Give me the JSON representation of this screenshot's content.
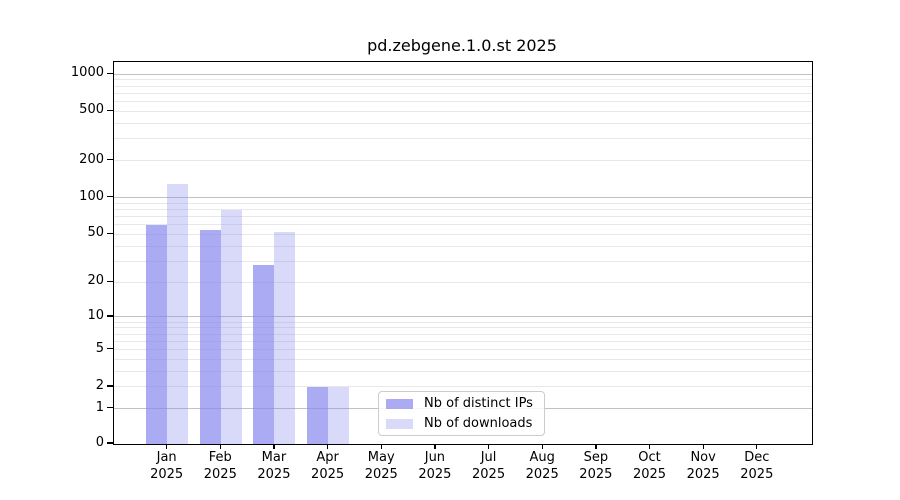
{
  "chart_data": {
    "type": "bar",
    "title": "pd.zebgene.1.0.st 2025",
    "x_axis": {
      "months": [
        "Jan",
        "Feb",
        "Mar",
        "Apr",
        "May",
        "Jun",
        "Jul",
        "Aug",
        "Sep",
        "Oct",
        "Nov",
        "Dec"
      ],
      "year": "2025"
    },
    "y_axis": {
      "scale": "log10(1+value)",
      "tick_values": [
        1000,
        500,
        200,
        100,
        50,
        20,
        10,
        5,
        2,
        1,
        0
      ],
      "major_gridlines": [
        1,
        10,
        100,
        1000
      ],
      "minor_gridlines": [
        2,
        3,
        4,
        5,
        6,
        7,
        8,
        9,
        20,
        30,
        40,
        50,
        60,
        70,
        80,
        90,
        200,
        300,
        400,
        500,
        600,
        700,
        800,
        900
      ],
      "top_value": 1250
    },
    "series": [
      {
        "name": "Nb of distinct IPs",
        "color": "#8888ee",
        "alpha": 0.7,
        "values": [
          60,
          54,
          28,
          2,
          0,
          0,
          0,
          0,
          0,
          0,
          0,
          0
        ]
      },
      {
        "name": "Nb of downloads",
        "color": "#8888ee",
        "alpha": 0.32,
        "values": [
          128,
          79,
          52,
          2,
          0,
          0,
          0,
          0,
          0,
          0,
          0,
          0
        ]
      }
    ],
    "legend": {
      "entries": [
        "Nb of distinct IPs",
        "Nb of downloads"
      ],
      "position": "lower-center"
    },
    "grid": true
  },
  "colors": {
    "bar_base": "#8888ee",
    "major_grid": "#c2c2c2",
    "minor_grid": "#e8e8e8",
    "axis": "#000000",
    "legend_border": "#cccccc"
  }
}
